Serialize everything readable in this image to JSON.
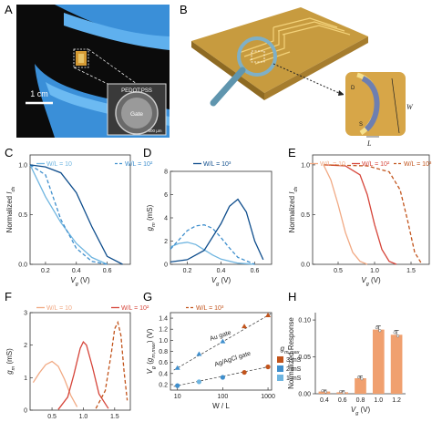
{
  "panel_labels": {
    "a": "A",
    "b": "B",
    "c": "C",
    "d": "D",
    "e": "E",
    "f": "F",
    "g": "G",
    "h": "H"
  },
  "photo": {
    "scale": "1 cm",
    "inset_top": "PEDOT:PSS",
    "inset_center": "Gate",
    "inset_scale": "500 µm"
  },
  "schematic": {
    "d": "D",
    "s": "S",
    "w": "W",
    "l": "L"
  },
  "colors": {
    "light_blue": "#6fb5e0",
    "mid_blue": "#3f8fcd",
    "dark_blue": "#0e4d8c",
    "light_orange": "#f1a983",
    "mid_red": "#d6453a",
    "dark_orange": "#c2541c",
    "bar": "#f0a06f"
  },
  "legend_blue": [
    "W/L = 10",
    "W/L = 10²",
    "W/L = 10³"
  ],
  "legend_orange": [
    "W/L = 10",
    "W/L = 10²",
    "W/L = 10³"
  ],
  "chart_data": [
    {
      "panel": "C",
      "type": "line",
      "ylabel": "Normalized I_ds",
      "xlabel": "V_g (V)",
      "xticks": [
        "0.2",
        "0.4",
        "0.6"
      ],
      "yticks": [
        "0.0",
        "0.5",
        "1.0"
      ],
      "xlim": [
        0.1,
        0.75
      ],
      "ylim": [
        0,
        1.1
      ],
      "series": [
        {
          "name": "W/L = 10",
          "style": "solid",
          "color": "#6fb5e0",
          "x": [
            0.1,
            0.2,
            0.3,
            0.4,
            0.5,
            0.6
          ],
          "y": [
            1.0,
            0.68,
            0.42,
            0.21,
            0.07,
            0.0
          ]
        },
        {
          "name": "W/L = 10²",
          "style": "dashed",
          "color": "#3f8fcd",
          "x": [
            0.1,
            0.2,
            0.3,
            0.4,
            0.5,
            0.6
          ],
          "y": [
            1.0,
            0.9,
            0.45,
            0.16,
            0.03,
            0.0
          ]
        },
        {
          "name": "W/L = 10³",
          "style": "solid",
          "color": "#0e4d8c",
          "x": [
            0.1,
            0.2,
            0.3,
            0.4,
            0.5,
            0.6,
            0.7
          ],
          "y": [
            1.0,
            0.98,
            0.92,
            0.72,
            0.38,
            0.08,
            0.0
          ]
        }
      ]
    },
    {
      "panel": "D",
      "type": "line",
      "ylabel": "g_m (mS)",
      "xlabel": "V_g (V)",
      "xticks": [
        "0.2",
        "0.4",
        "0.6"
      ],
      "yticks": [
        "0",
        "2",
        "4",
        "6",
        "8"
      ],
      "xlim": [
        0.1,
        0.7
      ],
      "ylim": [
        0,
        8
      ],
      "series": [
        {
          "name": "W/L = 10",
          "style": "solid",
          "color": "#6fb5e0",
          "x": [
            0.1,
            0.15,
            0.2,
            0.25,
            0.3,
            0.35,
            0.4,
            0.5,
            0.6
          ],
          "y": [
            1.5,
            1.8,
            1.9,
            1.7,
            1.25,
            0.8,
            0.45,
            0.1,
            0.0
          ]
        },
        {
          "name": "W/L = 10²",
          "style": "dashed",
          "color": "#3f8fcd",
          "x": [
            0.1,
            0.2,
            0.25,
            0.3,
            0.35,
            0.4,
            0.45,
            0.5,
            0.6
          ],
          "y": [
            1.3,
            2.9,
            3.3,
            3.4,
            3.1,
            2.3,
            1.4,
            0.6,
            0.0
          ]
        },
        {
          "name": "W/L = 10³",
          "style": "solid",
          "color": "#0e4d8c",
          "x": [
            0.1,
            0.2,
            0.3,
            0.4,
            0.45,
            0.5,
            0.55,
            0.6,
            0.65
          ],
          "y": [
            0.2,
            0.4,
            1.2,
            3.5,
            5.0,
            5.6,
            4.5,
            2.0,
            0.4
          ]
        }
      ]
    },
    {
      "panel": "E",
      "type": "line",
      "ylabel": "Normalized I_ds",
      "xlabel": "V_g (V)",
      "xticks": [
        "0.5",
        "1.0",
        "1.5"
      ],
      "yticks": [
        "0.0",
        "0.5",
        "1.0"
      ],
      "xlim": [
        0.15,
        1.75
      ],
      "ylim": [
        0,
        1.1
      ],
      "series": [
        {
          "name": "W/L = 10",
          "style": "solid",
          "color": "#f1a983",
          "x": [
            0.3,
            0.4,
            0.5,
            0.6,
            0.7,
            0.8,
            0.9
          ],
          "y": [
            1.0,
            0.85,
            0.6,
            0.32,
            0.12,
            0.03,
            0.0
          ]
        },
        {
          "name": "W/L = 10²",
          "style": "solid",
          "color": "#d6453a",
          "x": [
            0.3,
            0.6,
            0.8,
            0.9,
            1.0,
            1.1,
            1.2,
            1.3
          ],
          "y": [
            1.0,
            0.99,
            0.9,
            0.7,
            0.4,
            0.15,
            0.03,
            0.0
          ]
        },
        {
          "name": "W/L = 10³",
          "style": "dashed",
          "color": "#c2541c",
          "x": [
            0.3,
            0.9,
            1.2,
            1.35,
            1.45,
            1.55,
            1.65
          ],
          "y": [
            1.0,
            0.99,
            0.93,
            0.75,
            0.45,
            0.12,
            0.0
          ]
        }
      ]
    },
    {
      "panel": "F",
      "type": "line",
      "ylabel": "g_m (mS)",
      "xlabel": "V_g (V)",
      "xticks": [
        "0.5",
        "1.0",
        "1.5"
      ],
      "yticks": [
        "0",
        "1",
        "2",
        "3"
      ],
      "xlim": [
        0.15,
        1.75
      ],
      "ylim": [
        0,
        3
      ],
      "series": [
        {
          "name": "W/L = 10",
          "style": "solid",
          "color": "#f1a983",
          "x": [
            0.2,
            0.3,
            0.4,
            0.5,
            0.6,
            0.7,
            0.8,
            0.9
          ],
          "y": [
            0.85,
            1.15,
            1.4,
            1.5,
            1.35,
            0.95,
            0.45,
            0.1
          ]
        },
        {
          "name": "W/L = 10²",
          "style": "solid",
          "color": "#d6453a",
          "x": [
            0.6,
            0.75,
            0.85,
            0.95,
            1.0,
            1.05,
            1.15,
            1.25,
            1.4
          ],
          "y": [
            0.02,
            0.4,
            1.1,
            1.9,
            2.1,
            2.0,
            1.3,
            0.5,
            0.05
          ]
        },
        {
          "name": "W/L = 10³",
          "style": "dashed",
          "color": "#c2541c",
          "x": [
            1.2,
            1.35,
            1.45,
            1.5,
            1.55,
            1.6,
            1.65,
            1.7
          ],
          "y": [
            0.05,
            0.6,
            1.8,
            2.5,
            2.7,
            2.3,
            1.2,
            0.3
          ]
        }
      ]
    },
    {
      "panel": "G",
      "type": "scatter",
      "ylabel": "V_g (g_m,max) (V)",
      "xlabel": "W / L",
      "xlog": true,
      "xticks": [
        "10",
        "100",
        "1000"
      ],
      "yticks": [
        "0.2",
        "0.4",
        "0.6",
        "0.8",
        "1.0",
        "1.2",
        "1.4"
      ],
      "xlim": [
        7,
        1200
      ],
      "ylim": [
        0.1,
        1.5
      ],
      "annotations": [
        "Au gate",
        "Ag/AgCl gate"
      ],
      "legend_title": "g_m,max",
      "legend": [
        "3 mS",
        "2 mS",
        "1 mS"
      ],
      "series": [
        {
          "name": "Au gate",
          "x": [
            10,
            30,
            100,
            300,
            1000
          ],
          "y": [
            0.5,
            0.75,
            0.98,
            1.25,
            1.45
          ],
          "colors": [
            "#3f8fcd",
            "#3f8fcd",
            "#3f8fcd",
            "#c2541c",
            "#c2541c"
          ]
        },
        {
          "name": "Ag/AgCl gate",
          "x": [
            10,
            30,
            100,
            300,
            1000
          ],
          "y": [
            0.18,
            0.25,
            0.33,
            0.42,
            0.52
          ],
          "colors": [
            "#3f8fcd",
            "#6fb5e0",
            "#3f8fcd",
            "#c2541c",
            "#c2541c"
          ]
        }
      ]
    },
    {
      "panel": "H",
      "type": "bar",
      "ylabel": "Normalized Response",
      "xlabel": "V_g (V)",
      "categories": [
        "0.4",
        "0.6",
        "0.8",
        "1.0",
        "1.2"
      ],
      "values": [
        0.003,
        0.002,
        0.021,
        0.087,
        0.08
      ],
      "errors": [
        0.002,
        0.002,
        0.003,
        0.005,
        0.006
      ],
      "yticks": [
        "0.00",
        "0.05",
        "0.10"
      ],
      "ylim": [
        0,
        0.11
      ]
    }
  ]
}
